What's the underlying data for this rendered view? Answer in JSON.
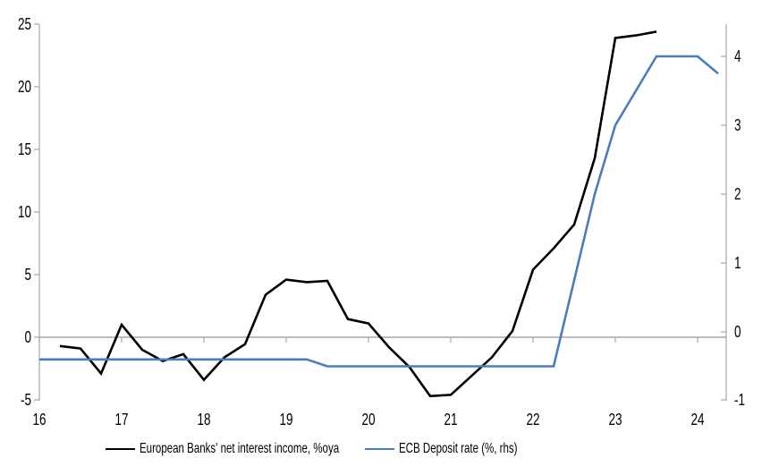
{
  "chart_data": {
    "type": "line",
    "title": "",
    "x_axis": {
      "ticks": [
        16,
        17,
        18,
        19,
        20,
        21,
        22,
        23,
        24
      ],
      "range": [
        16,
        24.35
      ]
    },
    "left_axis": {
      "ticks": [
        25,
        20,
        15,
        10,
        5,
        0,
        -5
      ],
      "range": [
        -5,
        25
      ]
    },
    "right_axis": {
      "ticks": [
        4,
        3,
        2,
        1,
        0,
        -1
      ],
      "range": [
        -1,
        4.45
      ]
    },
    "grid": "zero-line-only",
    "axis_color": "#a6a6a6",
    "background_color": "#ffffff",
    "legend_position": "bottom",
    "series": [
      {
        "name": "European Banks' net interest income, %oya",
        "axis": "left",
        "color": "#000000",
        "x": [
          16.25,
          16.5,
          16.75,
          17.0,
          17.25,
          17.5,
          17.75,
          18.0,
          18.25,
          18.5,
          18.75,
          19.0,
          19.25,
          19.5,
          19.75,
          20.0,
          20.25,
          20.5,
          20.75,
          21.0,
          21.25,
          21.5,
          21.75,
          22.0,
          22.25,
          22.5,
          22.75,
          23.0,
          23.25,
          23.5
        ],
        "values": [
          -0.7,
          -0.9,
          -2.9,
          1.0,
          -1.0,
          -1.9,
          -1.35,
          -3.4,
          -1.6,
          -0.55,
          3.4,
          4.6,
          4.4,
          4.5,
          1.45,
          1.1,
          -0.8,
          -2.4,
          -4.7,
          -4.6,
          -3.1,
          -1.6,
          0.5,
          5.4,
          7.1,
          9.0,
          14.3,
          23.9,
          24.1,
          24.4
        ]
      },
      {
        "name": "ECB Deposit rate (%, rhs)",
        "axis": "right",
        "color": "#4a7ebb",
        "x": [
          16.0,
          16.25,
          16.5,
          16.75,
          17.0,
          17.25,
          17.5,
          17.75,
          18.0,
          18.25,
          18.5,
          18.75,
          19.0,
          19.25,
          19.5,
          19.75,
          20.0,
          20.25,
          20.5,
          20.75,
          21.0,
          21.25,
          21.5,
          21.75,
          22.0,
          22.25,
          22.5,
          22.75,
          23.0,
          23.25,
          23.5,
          23.75,
          24.0,
          24.25
        ],
        "values": [
          -0.4,
          -0.4,
          -0.4,
          -0.4,
          -0.4,
          -0.4,
          -0.4,
          -0.4,
          -0.4,
          -0.4,
          -0.4,
          -0.4,
          -0.4,
          -0.4,
          -0.5,
          -0.5,
          -0.5,
          -0.5,
          -0.5,
          -0.5,
          -0.5,
          -0.5,
          -0.5,
          -0.5,
          -0.5,
          -0.5,
          0.75,
          2.0,
          3.0,
          3.5,
          4.0,
          4.0,
          4.0,
          3.75
        ]
      }
    ]
  }
}
